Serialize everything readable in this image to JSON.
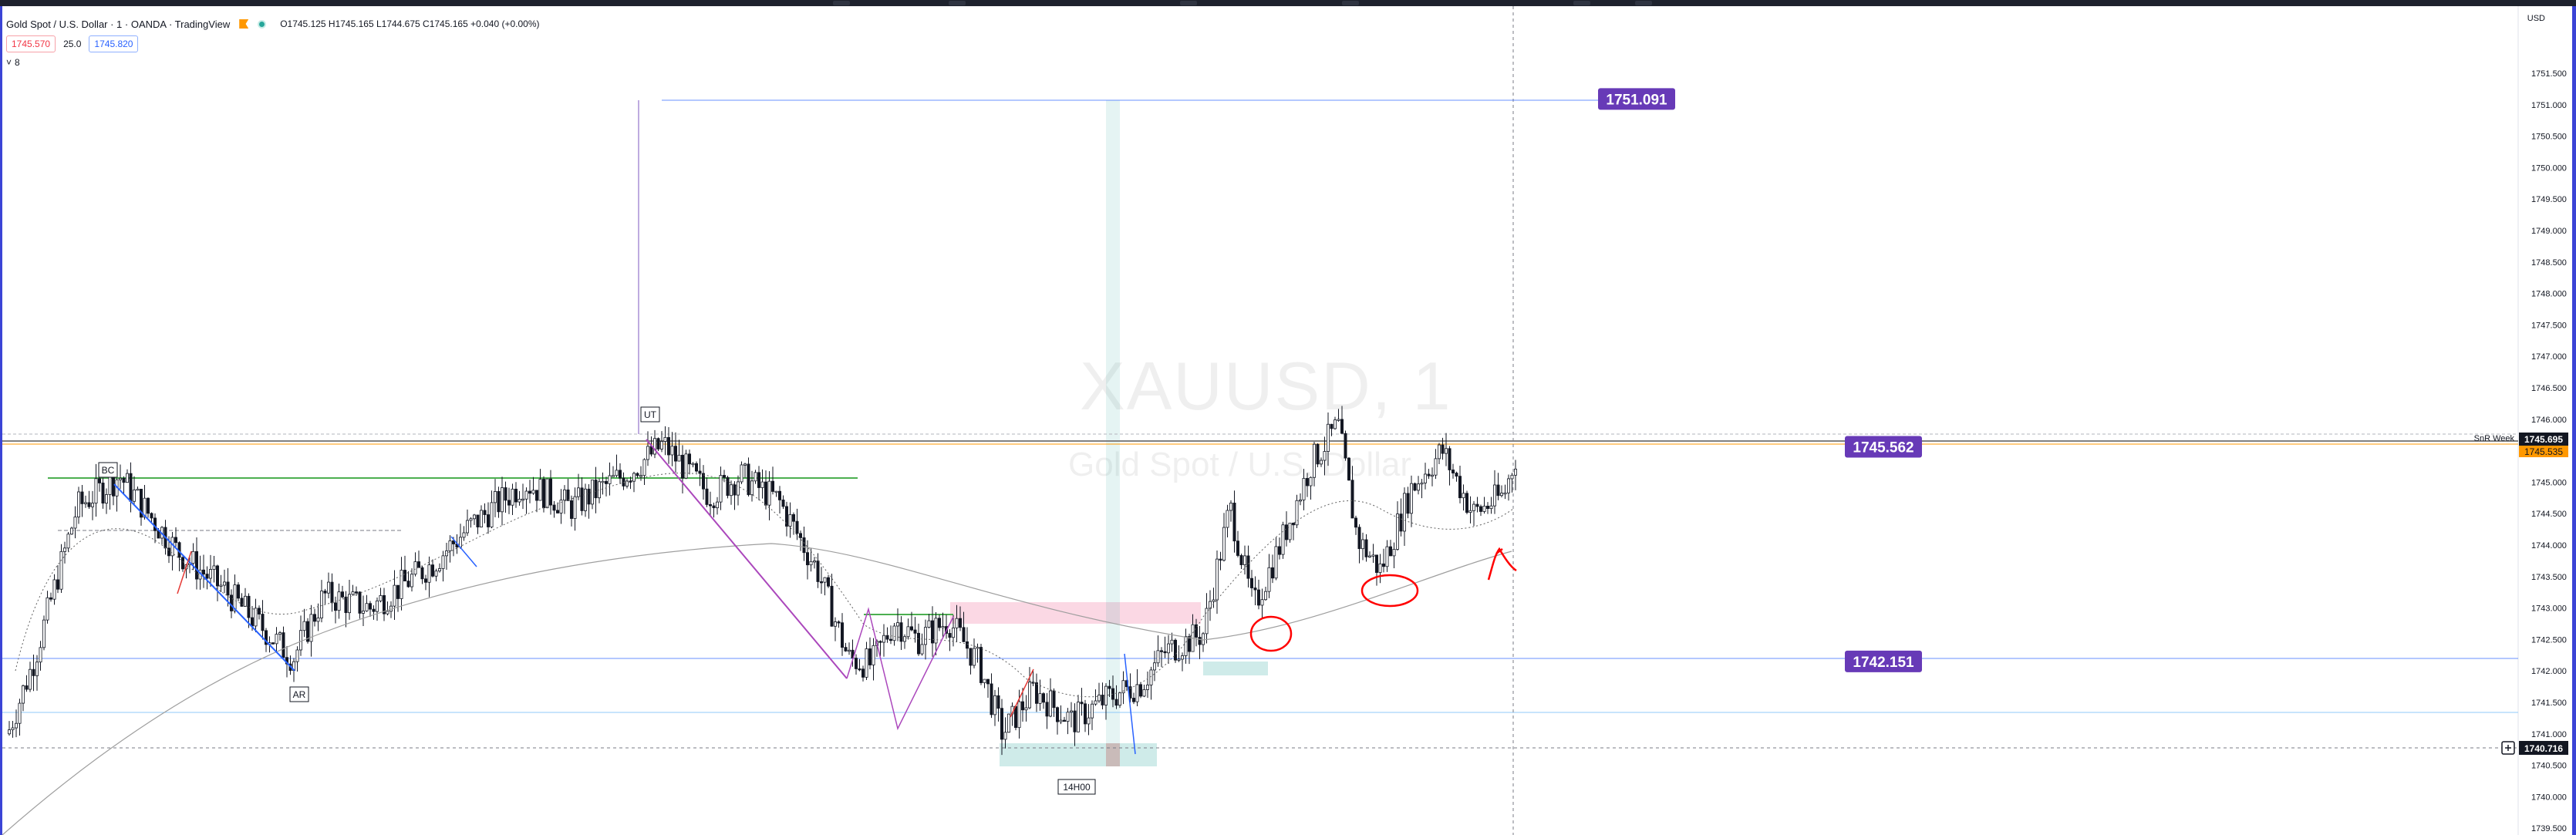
{
  "window": {
    "title": "Gold Spot / U.S. Dollar · 1 · OANDA · TradingView"
  },
  "legend": {
    "ohlc_label": "O1745.125 H1745.165 L1744.675 C1745.165 +0.040 (+0.00%)",
    "sell_price": "1745.570",
    "spread": "25.0",
    "buy_price": "1745.820",
    "indicators_toggle": "8"
  },
  "watermark": {
    "symbol": "XAUUSD, 1",
    "description": "Gold Spot / U.S. Dollar"
  },
  "axis": {
    "currency": "USD",
    "ticks": [
      "1751.500",
      "1751.000",
      "1750.500",
      "1750.000",
      "1749.500",
      "1749.000",
      "1748.500",
      "1748.000",
      "1747.500",
      "1747.000",
      "1746.500",
      "1746.000",
      "1745.000",
      "1744.500",
      "1744.000",
      "1743.500",
      "1743.000",
      "1742.500",
      "1742.000",
      "1741.500",
      "1741.000",
      "1740.500",
      "1740.000",
      "1739.500"
    ],
    "current_price": "1745.695",
    "ask_price": "1745.535",
    "crosshair_price": "1740.716",
    "snr_label": "SnR Week"
  },
  "levels": [
    {
      "value": "1751.091",
      "price": 1751.091
    },
    {
      "value": "1745.562",
      "price": 1745.562
    },
    {
      "value": "1742.151",
      "price": 1742.151
    }
  ],
  "annotations": [
    "BC",
    "AR",
    "UT",
    "14H00"
  ],
  "colors": {
    "level_badge": "#673ab7",
    "up_candle": "#ffffff",
    "down_candle": "#131722",
    "green_zone": "#26a69a",
    "pink_zone": "#f48fb1",
    "accent_blue": "#2962ff",
    "circle_red": "#ff0000"
  }
}
